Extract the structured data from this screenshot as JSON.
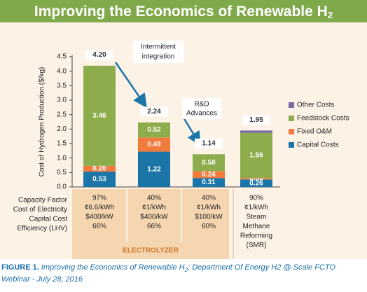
{
  "chart_data": {
    "type": "bar",
    "stacked": true,
    "title": "Improving the Economics of Renewable H",
    "title_subscript": "2",
    "y_label": "Cost of Hydrogen Production ($/kg)",
    "categories": [
      null,
      null,
      null,
      null
    ],
    "ylim": [
      0,
      4.5
    ],
    "yticks": [
      {
        "value": 0,
        "label": "0.0"
      },
      {
        "value": 0.5,
        "label": "0.5"
      },
      {
        "value": 1,
        "label": "1.0"
      },
      {
        "value": 1.5,
        "label": "1.5"
      },
      {
        "value": 2,
        "label": "2.0"
      },
      {
        "value": 2.5,
        "label": "2.5"
      },
      {
        "value": 3,
        "label": "3.0"
      },
      {
        "value": 3.5,
        "label": "3.5"
      },
      {
        "value": 4,
        "label": "4.0"
      },
      {
        "value": 4.5,
        "label": "4.5"
      }
    ],
    "series": [
      {
        "name": "Capital Costs",
        "color": "#1b75a9",
        "values": [
          0.53,
          1.22,
          0.31,
          0.26
        ],
        "value_labels": [
          "0.53",
          "1.22",
          "0.31",
          "0.26"
        ]
      },
      {
        "name": "Fixed O&M",
        "color": "#f07b3c",
        "values": [
          0.2,
          0.49,
          0.24,
          0.05
        ],
        "value_labels": [
          "0.20",
          "0.49",
          "0.24",
          "0.05"
        ]
      },
      {
        "name": "Feedstock Costs",
        "color": "#8dad4d",
        "values": [
          3.46,
          0.52,
          0.58,
          1.56
        ],
        "value_labels": [
          "3.46",
          "0.52",
          "0.58",
          "1.56"
        ]
      },
      {
        "name": "Other Costs",
        "color": "#7a68a6",
        "values": [
          null,
          null,
          null,
          0.08
        ]
      }
    ],
    "totals": [
      4.2,
      2.24,
      1.14,
      1.95
    ],
    "total_labels": [
      "4.20",
      "2.24",
      "1.14",
      "1.95"
    ],
    "annotations": [
      [
        "Intermittent",
        "integration"
      ],
      [
        "R&D",
        "Advances"
      ]
    ],
    "legend": "right"
  },
  "table": {
    "row_labels": [
      "Capacity Factor",
      "Cost of Electricity",
      "Capital Cost",
      "Efficiency (LHV)"
    ],
    "columns": [
      [
        "97%",
        "¢6.6/kWh",
        "$400/kW",
        "66%"
      ],
      [
        "40%",
        "¢1/kWh",
        "$400/kW",
        "66%"
      ],
      [
        "40%",
        "¢1/kWh",
        "$100/kW",
        "60%"
      ],
      [
        "90%",
        "¢1/kWh",
        "Steam",
        "Methane",
        "Reforming",
        "(SMR)"
      ]
    ],
    "group_label": "ELECTROLYZER"
  },
  "caption": {
    "label": "FIGURE 1.",
    "text": "Improving the Economics of Renewable H",
    "subscript": "2",
    "text_after": "; Department Of Energy H2 @ Scale FCTO",
    "line2": "Webinar - July 28, 2016"
  }
}
